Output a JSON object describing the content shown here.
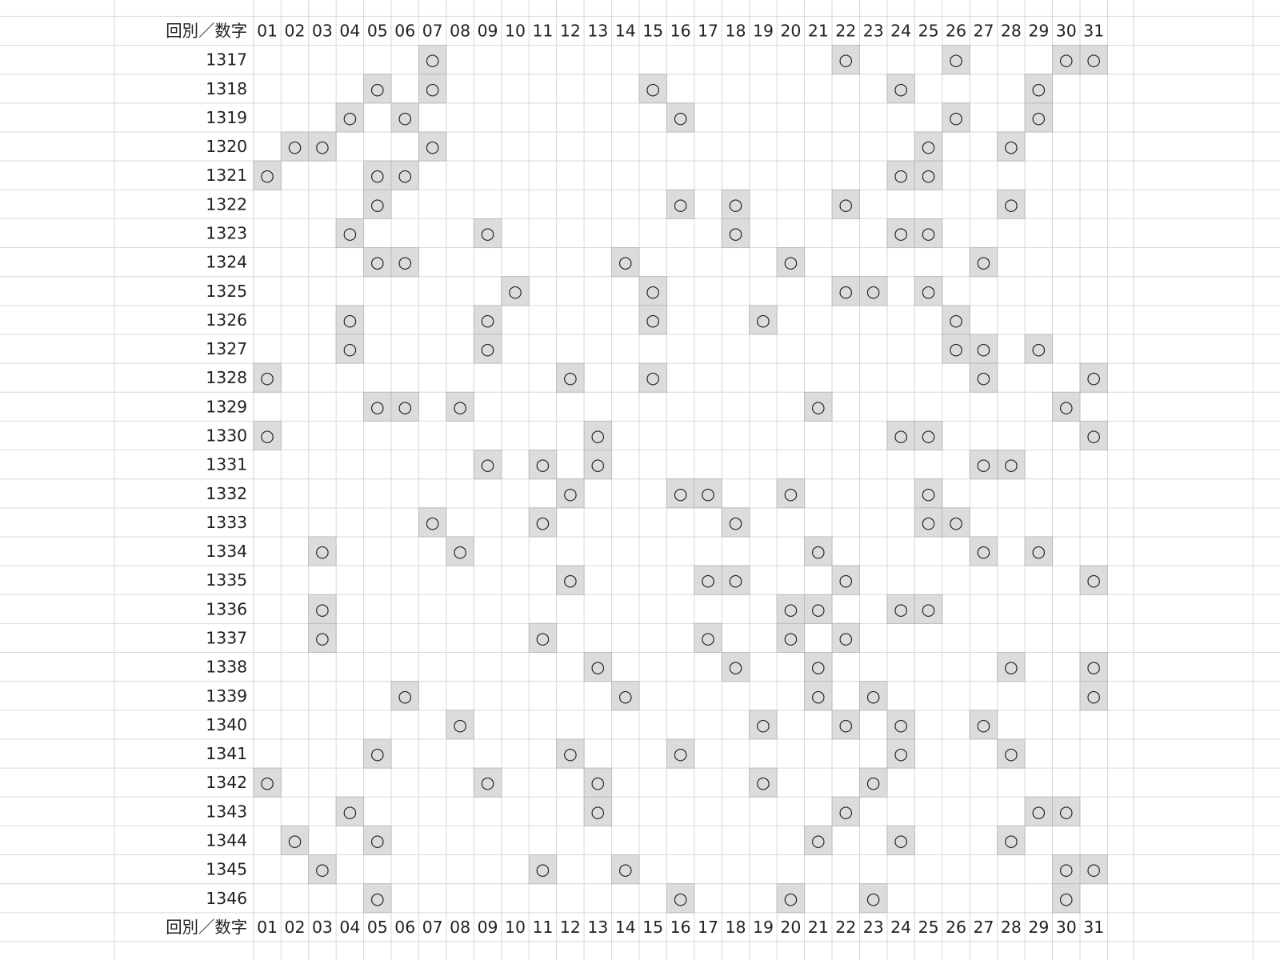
{
  "table": {
    "header": {
      "label": "回別／数字",
      "columns": [
        "01",
        "02",
        "03",
        "04",
        "05",
        "06",
        "07",
        "08",
        "09",
        "10",
        "11",
        "12",
        "13",
        "14",
        "15",
        "16",
        "17",
        "18",
        "19",
        "20",
        "21",
        "22",
        "23",
        "24",
        "25",
        "26",
        "27",
        "28",
        "29",
        "30",
        "31"
      ]
    },
    "rows": [
      {
        "label": "1317",
        "marks": {
          "07": "○",
          "22": "○",
          "26": "○",
          "30": "○",
          "31": "○"
        }
      },
      {
        "label": "1318",
        "marks": {
          "05": "○",
          "07": "○",
          "15": "○",
          "24": "○",
          "29": "○"
        }
      },
      {
        "label": "1319",
        "marks": {
          "04": "○",
          "06": "○",
          "16": "○",
          "26": "○",
          "29": "○"
        }
      },
      {
        "label": "1320",
        "marks": {
          "02": "○",
          "03": "○",
          "07": "○",
          "25": "○",
          "28": "○"
        }
      },
      {
        "label": "1321",
        "marks": {
          "01": "○",
          "05": "○",
          "06": "○",
          "24": "○",
          "25": "○"
        }
      },
      {
        "label": "1322",
        "marks": {
          "05": "○",
          "16": "○",
          "18": "○",
          "22": "○",
          "28": "○"
        }
      },
      {
        "label": "1323",
        "marks": {
          "04": "○",
          "09": "○",
          "18": "○",
          "24": "○",
          "25": "○"
        }
      },
      {
        "label": "1324",
        "marks": {
          "05": "○",
          "06": "○",
          "14": "○",
          "20": "○",
          "27": "○"
        }
      },
      {
        "label": "1325",
        "marks": {
          "10": "○",
          "15": "○",
          "22": "○",
          "23": "○",
          "25": "○"
        }
      },
      {
        "label": "1326",
        "marks": {
          "04": "○",
          "09": "○",
          "15": "○",
          "19": "○",
          "26": "○"
        }
      },
      {
        "label": "1327",
        "marks": {
          "04": "○",
          "09": "○",
          "26": "○",
          "27": "○",
          "29": "○"
        }
      },
      {
        "label": "1328",
        "marks": {
          "01": "○",
          "12": "○",
          "15": "○",
          "27": "○",
          "31": "○"
        }
      },
      {
        "label": "1329",
        "marks": {
          "05": "○",
          "06": "○",
          "08": "○",
          "21": "○",
          "30": "○"
        }
      },
      {
        "label": "1330",
        "marks": {
          "01": "○",
          "13": "○",
          "24": "○",
          "25": "○",
          "31": "○"
        }
      },
      {
        "label": "1331",
        "marks": {
          "09": "○",
          "11": "○",
          "13": "○",
          "27": "○",
          "28": "○"
        }
      },
      {
        "label": "1332",
        "marks": {
          "12": "○",
          "16": "○",
          "17": "○",
          "20": "○",
          "25": "○"
        }
      },
      {
        "label": "1333",
        "marks": {
          "07": "○",
          "11": "○",
          "18": "○",
          "25": "○",
          "26": "○"
        }
      },
      {
        "label": "1334",
        "marks": {
          "03": "○",
          "08": "○",
          "21": "○",
          "27": "○",
          "29": "○"
        }
      },
      {
        "label": "1335",
        "marks": {
          "12": "○",
          "17": "○",
          "18": "○",
          "22": "○",
          "31": "○"
        }
      },
      {
        "label": "1336",
        "marks": {
          "03": "○",
          "20": "○",
          "21": "○",
          "24": "○",
          "25": "○"
        }
      },
      {
        "label": "1337",
        "marks": {
          "03": "○",
          "11": "○",
          "17": "○",
          "20": "○",
          "22": "○"
        }
      },
      {
        "label": "1338",
        "marks": {
          "13": "○",
          "18": "○",
          "21": "○",
          "28": "○",
          "31": "○"
        }
      },
      {
        "label": "1339",
        "marks": {
          "06": "○",
          "14": "○",
          "21": "○",
          "23": "○",
          "31": "○"
        }
      },
      {
        "label": "1340",
        "marks": {
          "08": "○",
          "19": "○",
          "22": "○",
          "24": "○",
          "27": "○"
        }
      },
      {
        "label": "1341",
        "marks": {
          "05": "○",
          "12": "○",
          "16": "○",
          "24": "○",
          "28": "○"
        }
      },
      {
        "label": "1342",
        "marks": {
          "01": "○",
          "09": "○",
          "13": "○",
          "19": "○",
          "23": "○"
        }
      },
      {
        "label": "1343",
        "marks": {
          "04": "○",
          "13": "○",
          "22": "○",
          "29": "○",
          "30": "○"
        }
      },
      {
        "label": "1344",
        "marks": {
          "02": "○",
          "05": "○",
          "21": "○",
          "24": "○",
          "28": "○"
        }
      },
      {
        "label": "1345",
        "marks": {
          "03": "○",
          "11": "○",
          "14": "○",
          "30": "○",
          "31": "○"
        }
      },
      {
        "label": "1346",
        "marks": {
          "05": "○",
          "16": "○",
          "20": "○",
          "23": "○",
          "30": "○"
        }
      }
    ]
  }
}
